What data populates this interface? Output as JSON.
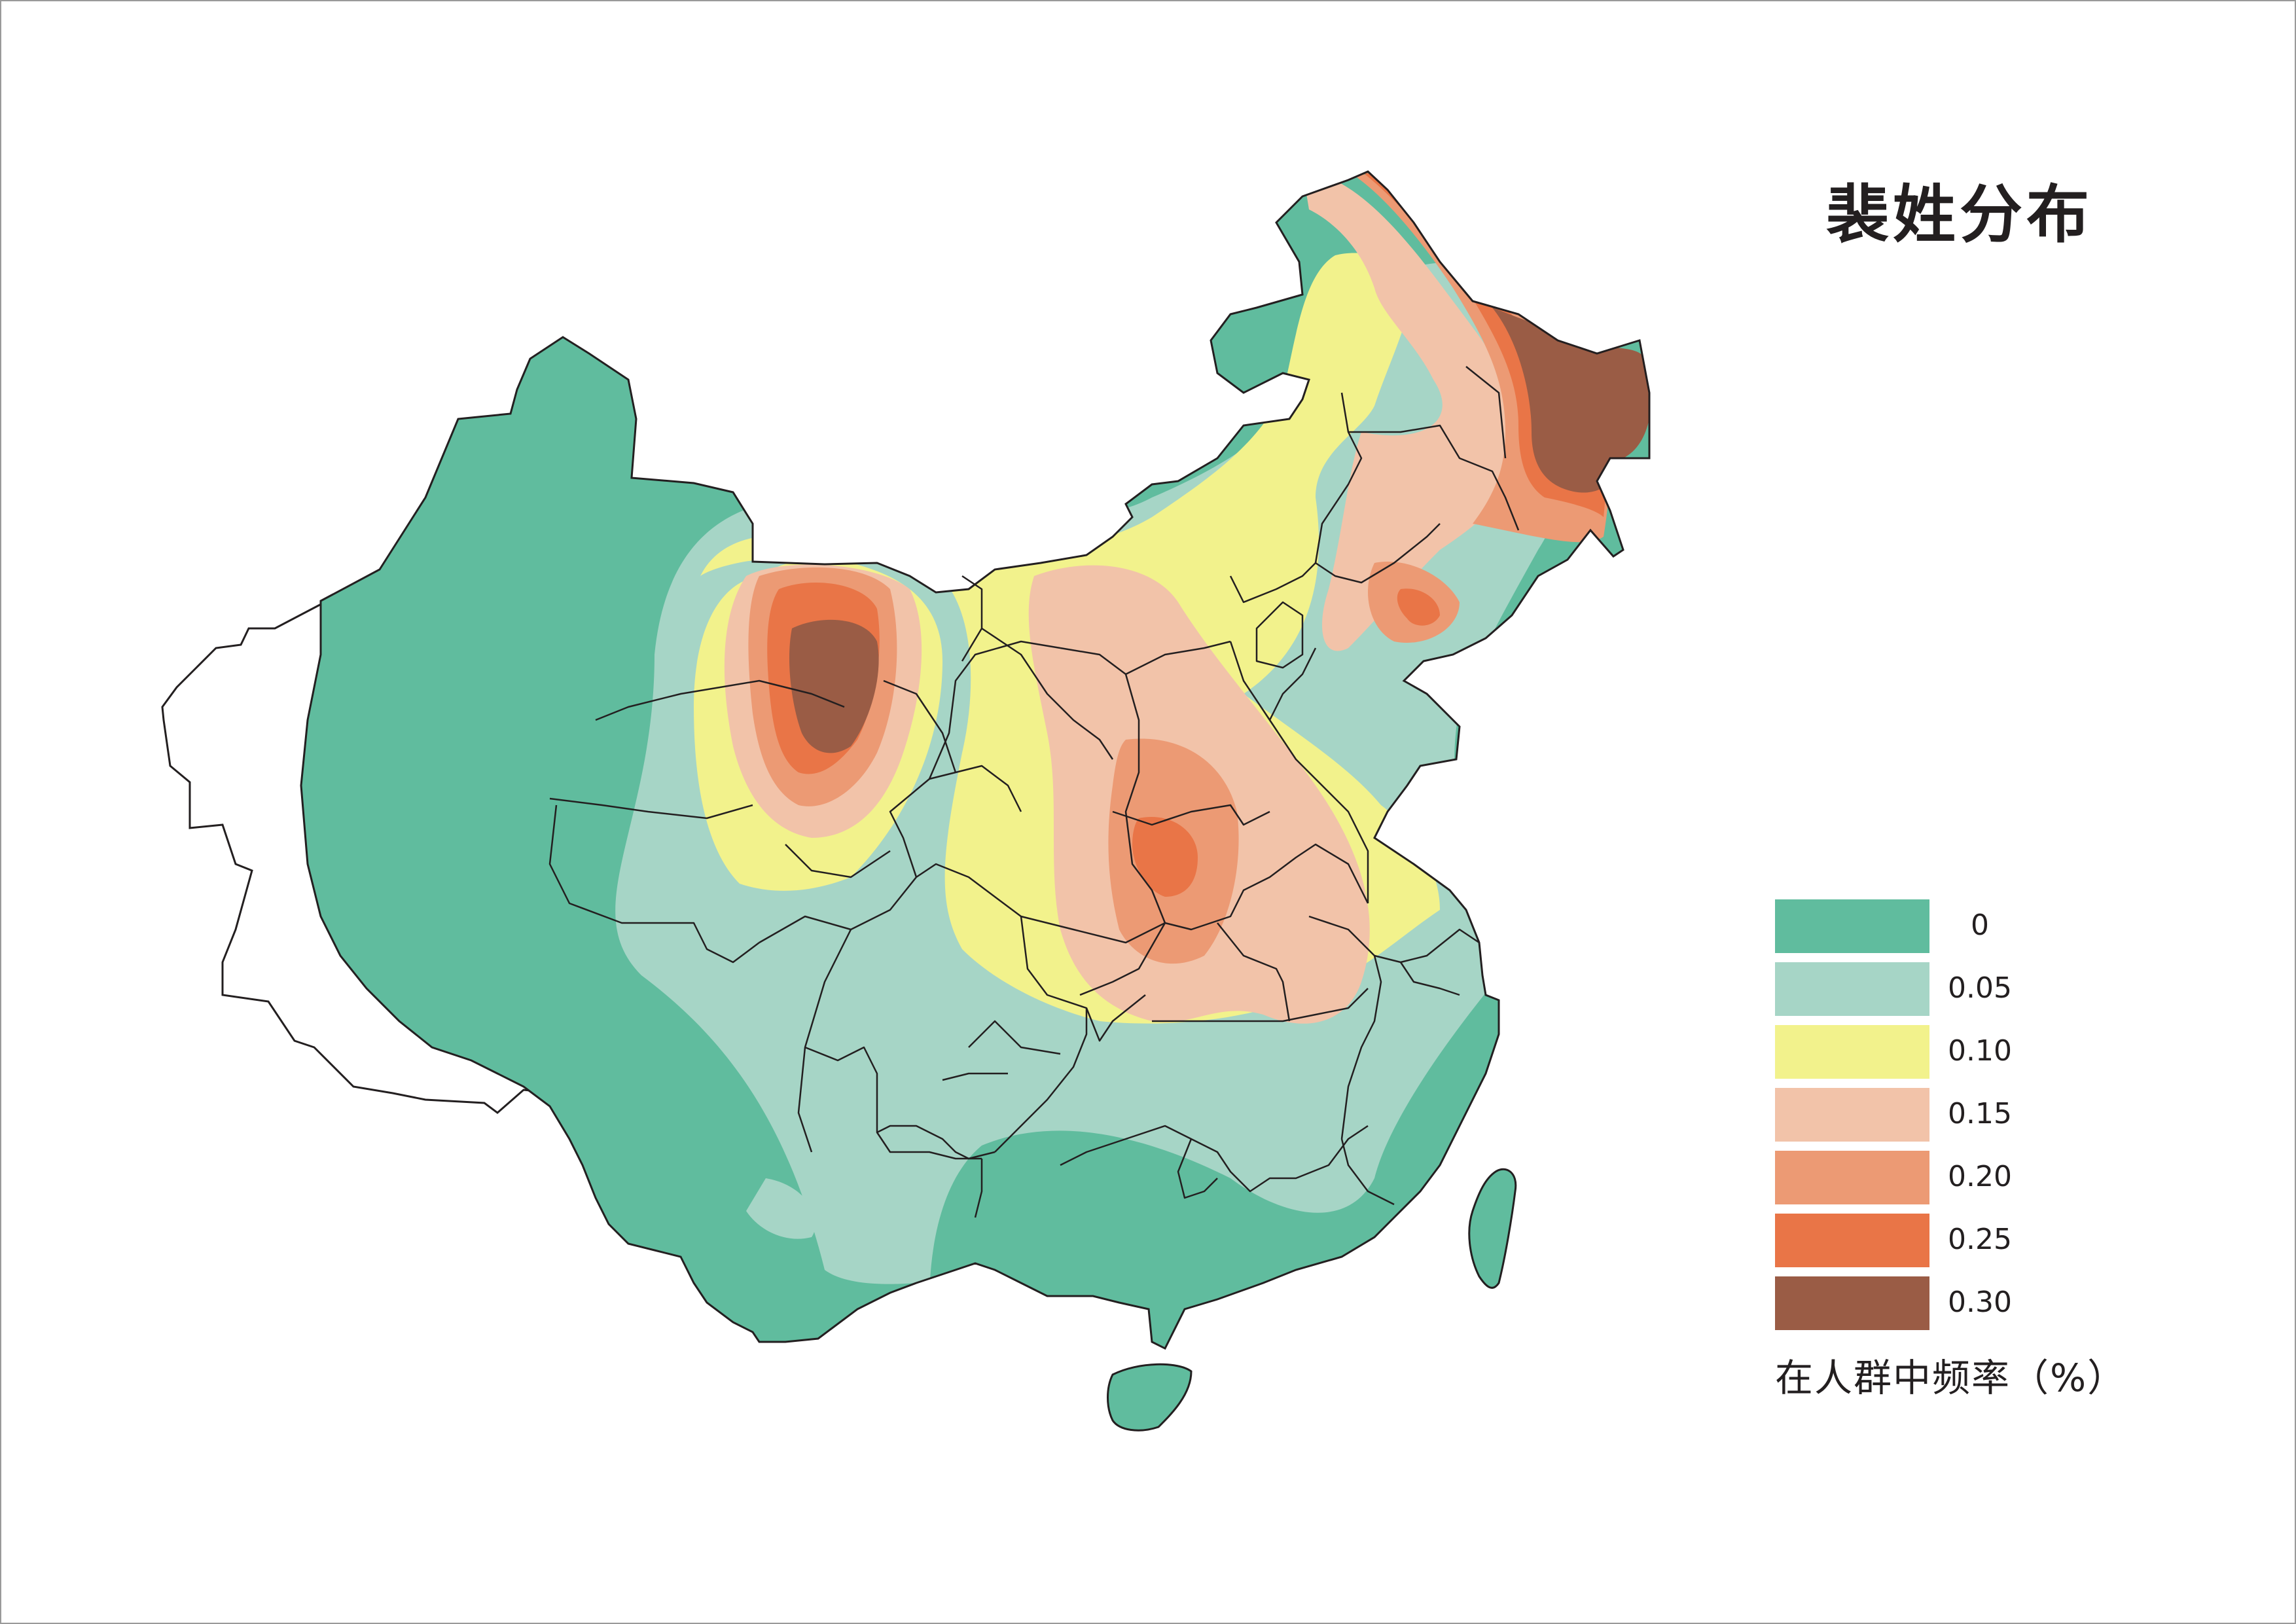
{
  "title": "裴姓分布",
  "legend": {
    "caption": "在人群中频率（%）",
    "items": [
      {
        "label": "0",
        "color": "#60bc9e"
      },
      {
        "label": "0.05",
        "color": "#a6d5c6"
      },
      {
        "label": "0.10",
        "color": "#f2f28c"
      },
      {
        "label": "0.15",
        "color": "#f2c3a9"
      },
      {
        "label": "0.20",
        "color": "#ec9a74"
      },
      {
        "label": "0.25",
        "color": "#e97547"
      },
      {
        "label": "0.30",
        "color": "#9a5c45"
      }
    ]
  }
}
